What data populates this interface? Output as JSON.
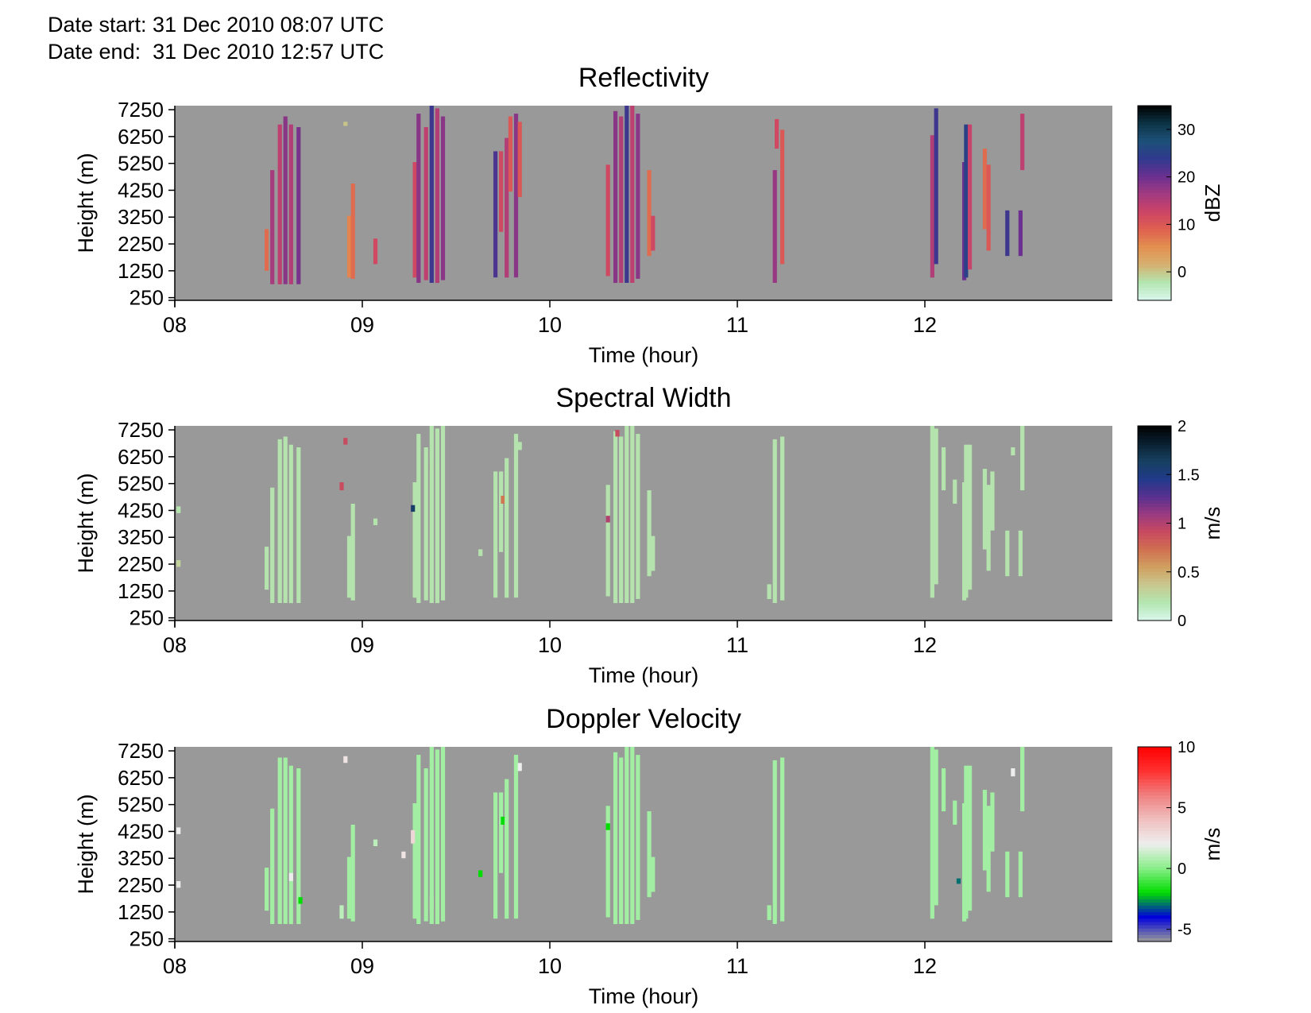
{
  "header": {
    "date_start": "Date start: 31 Dec 2010 08:07 UTC",
    "date_end": "Date end:  31 Dec 2010 12:57 UTC"
  },
  "colors": {
    "background": "#999999",
    "reflectivity_colormap": [
      "#d9f7ec",
      "#b3e6b0",
      "#d6b070",
      "#e29050",
      "#e06050",
      "#cc4466",
      "#a23a80",
      "#6a3090",
      "#303a8e",
      "#1c5078",
      "#0c3344",
      "#000000"
    ],
    "spectral_width_colormap": [
      "#d9f7ec",
      "#b3e6b0",
      "#c8c890",
      "#d0a060",
      "#d07050",
      "#c84a60",
      "#9a3a80",
      "#583090",
      "#203a8a",
      "#174060",
      "#0a2030",
      "#000000"
    ],
    "doppler_colormap": [
      "#999999",
      "#0000dd",
      "#00dd00",
      "#88ee88",
      "#eeeeee",
      "#f0c0c0",
      "#f08080",
      "#ff3030",
      "#ff0000"
    ]
  },
  "chart_data": [
    {
      "type": "heatmap",
      "title": "Reflectivity",
      "xlabel": "Time (hour)",
      "ylabel": "Height (m)",
      "xlim": [
        8.0,
        13.0
      ],
      "ylim": [
        150,
        7400
      ],
      "x_ticks": [
        "08",
        "09",
        "10",
        "11",
        "12"
      ],
      "y_ticks": [
        "250",
        "1250",
        "2250",
        "3250",
        "4250",
        "5250",
        "6250",
        "7250"
      ],
      "colorbar": {
        "label": "dBZ",
        "ticks": [
          "0",
          "10",
          "20",
          "30"
        ],
        "range": [
          -6,
          35
        ]
      },
      "columns": [
        {
          "x": 8.49,
          "from": 1250,
          "to": 2800,
          "v": 8
        },
        {
          "x": 8.52,
          "from": 750,
          "to": 5000,
          "v": 16
        },
        {
          "x": 8.56,
          "from": 750,
          "to": 6700,
          "v": 14
        },
        {
          "x": 8.59,
          "from": 750,
          "to": 7000,
          "v": 18
        },
        {
          "x": 8.62,
          "from": 750,
          "to": 6700,
          "v": 15
        },
        {
          "x": 8.66,
          "from": 750,
          "to": 6600,
          "v": 19
        },
        {
          "x": 8.91,
          "from": 6650,
          "to": 6800,
          "v": 0
        },
        {
          "x": 8.93,
          "from": 1000,
          "to": 3300,
          "v": 6
        },
        {
          "x": 8.95,
          "from": 950,
          "to": 4500,
          "v": 8
        },
        {
          "x": 9.07,
          "from": 1500,
          "to": 2450,
          "v": 12
        },
        {
          "x": 9.28,
          "from": 1000,
          "to": 5300,
          "v": 12
        },
        {
          "x": 9.3,
          "from": 800,
          "to": 7100,
          "v": 18
        },
        {
          "x": 9.34,
          "from": 900,
          "to": 6600,
          "v": 14
        },
        {
          "x": 9.37,
          "from": 800,
          "to": 7400,
          "v": 23
        },
        {
          "x": 9.4,
          "from": 800,
          "to": 7300,
          "v": 15
        },
        {
          "x": 9.43,
          "from": 900,
          "to": 7000,
          "v": 18
        },
        {
          "x": 9.71,
          "from": 1000,
          "to": 5700,
          "v": 22
        },
        {
          "x": 9.74,
          "from": 2700,
          "to": 5700,
          "v": 12
        },
        {
          "x": 9.77,
          "from": 1000,
          "to": 6200,
          "v": 15
        },
        {
          "x": 9.79,
          "from": 4200,
          "to": 7000,
          "v": 10
        },
        {
          "x": 9.82,
          "from": 1000,
          "to": 7100,
          "v": 18
        },
        {
          "x": 9.84,
          "from": 4000,
          "to": 6800,
          "v": 10
        },
        {
          "x": 10.31,
          "from": 1050,
          "to": 5200,
          "v": 12
        },
        {
          "x": 10.35,
          "from": 800,
          "to": 7200,
          "v": 18
        },
        {
          "x": 10.38,
          "from": 800,
          "to": 7000,
          "v": 15
        },
        {
          "x": 10.41,
          "from": 800,
          "to": 7400,
          "v": 23
        },
        {
          "x": 10.44,
          "from": 800,
          "to": 7400,
          "v": 14
        },
        {
          "x": 10.47,
          "from": 950,
          "to": 7100,
          "v": 18
        },
        {
          "x": 10.53,
          "from": 1800,
          "to": 5000,
          "v": 8
        },
        {
          "x": 10.55,
          "from": 2000,
          "to": 3300,
          "v": 12
        },
        {
          "x": 11.2,
          "from": 800,
          "to": 5000,
          "v": 17
        },
        {
          "x": 11.21,
          "from": 5800,
          "to": 6900,
          "v": 12
        },
        {
          "x": 11.24,
          "from": 1500,
          "to": 6500,
          "v": 10
        },
        {
          "x": 12.04,
          "from": 1000,
          "to": 6300,
          "v": 15
        },
        {
          "x": 12.06,
          "from": 1500,
          "to": 7300,
          "v": 23
        },
        {
          "x": 12.21,
          "from": 900,
          "to": 5300,
          "v": 20
        },
        {
          "x": 12.22,
          "from": 1000,
          "to": 6700,
          "v": 25
        },
        {
          "x": 12.24,
          "from": 1300,
          "to": 6700,
          "v": 13
        },
        {
          "x": 12.32,
          "from": 2800,
          "to": 5800,
          "v": 8
        },
        {
          "x": 12.34,
          "from": 2000,
          "to": 5200,
          "v": 10
        },
        {
          "x": 12.44,
          "from": 1800,
          "to": 3500,
          "v": 23
        },
        {
          "x": 12.51,
          "from": 1800,
          "to": 3500,
          "v": 20
        },
        {
          "x": 12.52,
          "from": 5000,
          "to": 7100,
          "v": 14
        }
      ]
    },
    {
      "type": "heatmap",
      "title": "Spectral Width",
      "xlabel": "Time (hour)",
      "ylabel": "Height (m)",
      "xlim": [
        8.0,
        13.0
      ],
      "ylim": [
        150,
        7400
      ],
      "x_ticks": [
        "08",
        "09",
        "10",
        "11",
        "12"
      ],
      "y_ticks": [
        "250",
        "1250",
        "2250",
        "3250",
        "4250",
        "5250",
        "6250",
        "7250"
      ],
      "colorbar": {
        "label": "m/s",
        "ticks": [
          "0",
          "0.5",
          "1",
          "1.5",
          "2"
        ],
        "range": [
          0,
          2
        ]
      },
      "columns": [
        {
          "x": 8.02,
          "from": 4150,
          "to": 4400,
          "v": 0.2
        },
        {
          "x": 8.02,
          "from": 2150,
          "to": 2400,
          "v": 0.3
        },
        {
          "x": 8.49,
          "from": 1300,
          "to": 2900,
          "v": 0.2
        },
        {
          "x": 8.52,
          "from": 800,
          "to": 5100,
          "v": 0.2
        },
        {
          "x": 8.56,
          "from": 800,
          "to": 6900,
          "v": 0.2
        },
        {
          "x": 8.59,
          "from": 800,
          "to": 7000,
          "v": 0.2
        },
        {
          "x": 8.62,
          "from": 800,
          "to": 6700,
          "v": 0.2
        },
        {
          "x": 8.66,
          "from": 800,
          "to": 6600,
          "v": 0.2
        },
        {
          "x": 8.91,
          "from": 6700,
          "to": 6950,
          "v": 0.9
        },
        {
          "x": 8.89,
          "from": 5000,
          "to": 5300,
          "v": 0.9
        },
        {
          "x": 8.93,
          "from": 1000,
          "to": 3300,
          "v": 0.2
        },
        {
          "x": 8.95,
          "from": 900,
          "to": 4500,
          "v": 0.2
        },
        {
          "x": 9.07,
          "from": 3700,
          "to": 3950,
          "v": 0.2
        },
        {
          "x": 9.28,
          "from": 1000,
          "to": 5300,
          "v": 0.2
        },
        {
          "x": 9.27,
          "from": 4200,
          "to": 4450,
          "v": 1.6
        },
        {
          "x": 9.3,
          "from": 800,
          "to": 7100,
          "v": 0.2
        },
        {
          "x": 9.34,
          "from": 900,
          "to": 6600,
          "v": 0.2
        },
        {
          "x": 9.37,
          "from": 5800,
          "to": 6050,
          "v": 0.9
        },
        {
          "x": 9.37,
          "from": 800,
          "to": 7400,
          "v": 0.2
        },
        {
          "x": 9.4,
          "from": 800,
          "to": 7300,
          "v": 0.2
        },
        {
          "x": 9.43,
          "from": 900,
          "to": 7400,
          "v": 0.2
        },
        {
          "x": 9.63,
          "from": 2550,
          "to": 2800,
          "v": 0.2
        },
        {
          "x": 9.71,
          "from": 1000,
          "to": 5700,
          "v": 0.2
        },
        {
          "x": 9.74,
          "from": 2700,
          "to": 5700,
          "v": 0.2
        },
        {
          "x": 9.75,
          "from": 4500,
          "to": 4800,
          "v": 0.7
        },
        {
          "x": 9.77,
          "from": 1000,
          "to": 6200,
          "v": 0.2
        },
        {
          "x": 9.82,
          "from": 1000,
          "to": 7100,
          "v": 0.2
        },
        {
          "x": 9.84,
          "from": 6500,
          "to": 6800,
          "v": 0.2
        },
        {
          "x": 10.31,
          "from": 1050,
          "to": 5200,
          "v": 0.2
        },
        {
          "x": 10.31,
          "from": 3800,
          "to": 4050,
          "v": 1.0
        },
        {
          "x": 10.35,
          "from": 800,
          "to": 7200,
          "v": 0.2
        },
        {
          "x": 10.36,
          "from": 7000,
          "to": 7250,
          "v": 0.9
        },
        {
          "x": 10.38,
          "from": 800,
          "to": 7000,
          "v": 0.2
        },
        {
          "x": 10.41,
          "from": 800,
          "to": 7400,
          "v": 0.2
        },
        {
          "x": 10.44,
          "from": 800,
          "to": 7400,
          "v": 0.2
        },
        {
          "x": 10.47,
          "from": 950,
          "to": 7100,
          "v": 0.2
        },
        {
          "x": 10.53,
          "from": 1800,
          "to": 5000,
          "v": 0.2
        },
        {
          "x": 10.55,
          "from": 2000,
          "to": 3300,
          "v": 0.2
        },
        {
          "x": 11.17,
          "from": 950,
          "to": 1500,
          "v": 0.2
        },
        {
          "x": 11.2,
          "from": 800,
          "to": 6900,
          "v": 0.2
        },
        {
          "x": 11.24,
          "from": 900,
          "to": 7000,
          "v": 0.2
        },
        {
          "x": 12.04,
          "from": 1000,
          "to": 7400,
          "v": 0.2
        },
        {
          "x": 12.06,
          "from": 1500,
          "to": 7300,
          "v": 0.2
        },
        {
          "x": 12.1,
          "from": 5000,
          "to": 6600,
          "v": 0.2
        },
        {
          "x": 12.16,
          "from": 4500,
          "to": 5400,
          "v": 0.2
        },
        {
          "x": 12.21,
          "from": 900,
          "to": 5300,
          "v": 0.2
        },
        {
          "x": 12.22,
          "from": 1000,
          "to": 6700,
          "v": 0.2
        },
        {
          "x": 12.24,
          "from": 1300,
          "to": 6700,
          "v": 0.2
        },
        {
          "x": 12.32,
          "from": 2800,
          "to": 5800,
          "v": 0.2
        },
        {
          "x": 12.34,
          "from": 2000,
          "to": 5200,
          "v": 0.2
        },
        {
          "x": 12.36,
          "from": 3500,
          "to": 5700,
          "v": 0.2
        },
        {
          "x": 12.44,
          "from": 1800,
          "to": 3500,
          "v": 0.2
        },
        {
          "x": 12.47,
          "from": 6300,
          "to": 6600,
          "v": 0.2
        },
        {
          "x": 12.51,
          "from": 1800,
          "to": 3500,
          "v": 0.2
        },
        {
          "x": 12.52,
          "from": 5000,
          "to": 7400,
          "v": 0.2
        }
      ]
    },
    {
      "type": "heatmap",
      "title": "Doppler Velocity",
      "xlabel": "Time (hour)",
      "ylabel": "Height (m)",
      "xlim": [
        8.0,
        13.0
      ],
      "ylim": [
        150,
        7400
      ],
      "x_ticks": [
        "08",
        "09",
        "10",
        "11",
        "12"
      ],
      "y_ticks": [
        "250",
        "1250",
        "2250",
        "3250",
        "4250",
        "5250",
        "6250",
        "7250"
      ],
      "colorbar": {
        "label": "m/s",
        "ticks": [
          "-5",
          "0",
          "5",
          "10"
        ],
        "range": [
          -6,
          10
        ]
      },
      "columns": [
        {
          "x": 8.02,
          "from": 4150,
          "to": 4400,
          "v": 2
        },
        {
          "x": 8.02,
          "from": 2150,
          "to": 2400,
          "v": 2
        },
        {
          "x": 8.49,
          "from": 1300,
          "to": 2900,
          "v": 0.5
        },
        {
          "x": 8.52,
          "from": 800,
          "to": 5100,
          "v": 0.5
        },
        {
          "x": 8.56,
          "from": 800,
          "to": 7000,
          "v": 0.5
        },
        {
          "x": 8.59,
          "from": 800,
          "to": 7000,
          "v": 0.5
        },
        {
          "x": 8.62,
          "from": 800,
          "to": 6700,
          "v": 0.5
        },
        {
          "x": 8.62,
          "from": 2400,
          "to": 2700,
          "v": 2
        },
        {
          "x": 8.66,
          "from": 800,
          "to": 6600,
          "v": 0.5
        },
        {
          "x": 8.67,
          "from": 1550,
          "to": 1800,
          "v": -2
        },
        {
          "x": 8.91,
          "from": 6800,
          "to": 7050,
          "v": 2.5
        },
        {
          "x": 8.89,
          "from": 1000,
          "to": 1500,
          "v": 1
        },
        {
          "x": 8.93,
          "from": 1000,
          "to": 3300,
          "v": 0.5
        },
        {
          "x": 8.95,
          "from": 900,
          "to": 4500,
          "v": 0.5
        },
        {
          "x": 9.07,
          "from": 3700,
          "to": 3950,
          "v": 1
        },
        {
          "x": 9.22,
          "from": 3250,
          "to": 3500,
          "v": 2.5
        },
        {
          "x": 9.28,
          "from": 1000,
          "to": 5300,
          "v": 0.5
        },
        {
          "x": 9.27,
          "from": 3800,
          "to": 4300,
          "v": 3
        },
        {
          "x": 9.3,
          "from": 800,
          "to": 7100,
          "v": 0.5
        },
        {
          "x": 9.34,
          "from": 900,
          "to": 6600,
          "v": 0.5
        },
        {
          "x": 9.37,
          "from": 1300,
          "to": 1800,
          "v": 3
        },
        {
          "x": 9.37,
          "from": 800,
          "to": 7400,
          "v": 0.5
        },
        {
          "x": 9.4,
          "from": 800,
          "to": 7300,
          "v": 0.5
        },
        {
          "x": 9.43,
          "from": 900,
          "to": 7400,
          "v": 0.5
        },
        {
          "x": 9.63,
          "from": 2550,
          "to": 2800,
          "v": -2
        },
        {
          "x": 9.71,
          "from": 1000,
          "to": 5700,
          "v": 0.5
        },
        {
          "x": 9.74,
          "from": 2700,
          "to": 5700,
          "v": 0.5
        },
        {
          "x": 9.75,
          "from": 4500,
          "to": 4800,
          "v": -2
        },
        {
          "x": 9.77,
          "from": 1000,
          "to": 6200,
          "v": 0.5
        },
        {
          "x": 9.82,
          "from": 1000,
          "to": 7100,
          "v": 0.5
        },
        {
          "x": 9.84,
          "from": 6500,
          "to": 6800,
          "v": 2
        },
        {
          "x": 10.31,
          "from": 1050,
          "to": 5200,
          "v": 0.5
        },
        {
          "x": 10.31,
          "from": 4300,
          "to": 4550,
          "v": -2
        },
        {
          "x": 10.35,
          "from": 800,
          "to": 7200,
          "v": 0.5
        },
        {
          "x": 10.38,
          "from": 800,
          "to": 7000,
          "v": 0.5
        },
        {
          "x": 10.41,
          "from": 800,
          "to": 7400,
          "v": 0.5
        },
        {
          "x": 10.44,
          "from": 800,
          "to": 7400,
          "v": 0.5
        },
        {
          "x": 10.47,
          "from": 950,
          "to": 7100,
          "v": 0.5
        },
        {
          "x": 10.53,
          "from": 1800,
          "to": 5000,
          "v": 0.5
        },
        {
          "x": 10.55,
          "from": 2000,
          "to": 3300,
          "v": 0.5
        },
        {
          "x": 11.17,
          "from": 950,
          "to": 1500,
          "v": 0.5
        },
        {
          "x": 11.2,
          "from": 800,
          "to": 6900,
          "v": 0.5
        },
        {
          "x": 11.24,
          "from": 900,
          "to": 7000,
          "v": 0.5
        },
        {
          "x": 12.04,
          "from": 1000,
          "to": 7400,
          "v": 0.5
        },
        {
          "x": 12.06,
          "from": 1500,
          "to": 7300,
          "v": 0.5
        },
        {
          "x": 12.1,
          "from": 5000,
          "to": 6600,
          "v": 0.5
        },
        {
          "x": 12.16,
          "from": 4500,
          "to": 5400,
          "v": 0.5
        },
        {
          "x": 12.18,
          "from": 2300,
          "to": 2500,
          "v": -3
        },
        {
          "x": 12.21,
          "from": 900,
          "to": 5300,
          "v": 0.5
        },
        {
          "x": 12.22,
          "from": 1000,
          "to": 6700,
          "v": 0.5
        },
        {
          "x": 12.24,
          "from": 1300,
          "to": 6700,
          "v": 0.5
        },
        {
          "x": 12.32,
          "from": 2800,
          "to": 5800,
          "v": 0.5
        },
        {
          "x": 12.34,
          "from": 2000,
          "to": 5200,
          "v": 0.5
        },
        {
          "x": 12.36,
          "from": 3500,
          "to": 5700,
          "v": 0.5
        },
        {
          "x": 12.44,
          "from": 1800,
          "to": 3500,
          "v": 0.5
        },
        {
          "x": 12.47,
          "from": 6300,
          "to": 6600,
          "v": 2
        },
        {
          "x": 12.51,
          "from": 1800,
          "to": 3500,
          "v": 0.5
        },
        {
          "x": 12.52,
          "from": 5000,
          "to": 7400,
          "v": 0.5
        }
      ]
    }
  ]
}
